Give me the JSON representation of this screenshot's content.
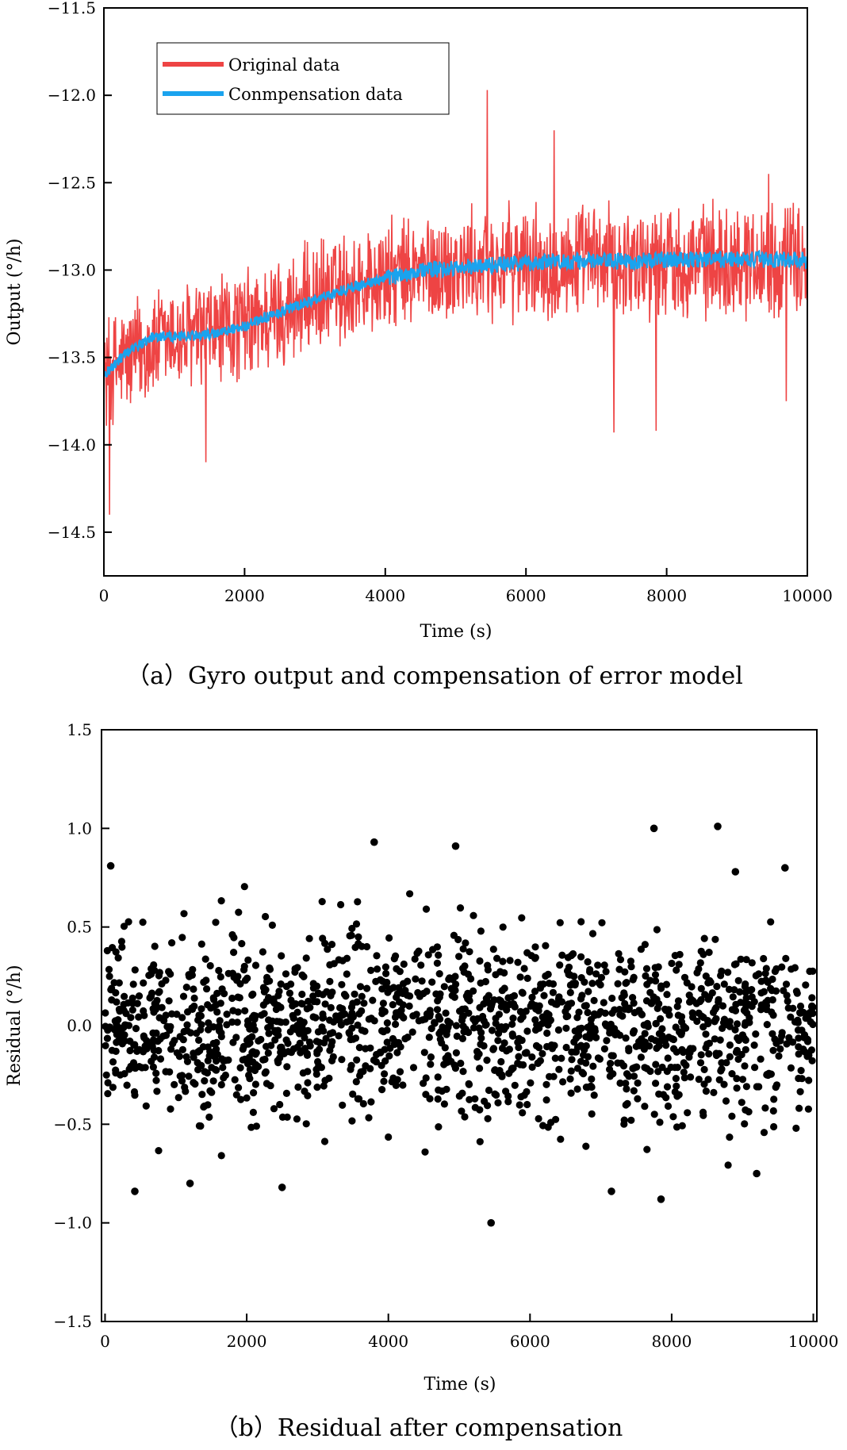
{
  "colors": {
    "original": "#ee4444",
    "compensation": "#1aa3ee",
    "residual": "#000000",
    "axis": "#000000"
  },
  "chart_data": [
    {
      "id": "a",
      "type": "line",
      "caption": "（a）Gyro output and compensation of error model",
      "xlabel": "Time (s)",
      "ylabel": "Output (°/h)",
      "xlim": [
        0,
        10000
      ],
      "ylim": [
        -14.75,
        -11.5
      ],
      "xticks": [
        0,
        2000,
        4000,
        6000,
        8000,
        10000
      ],
      "xtick_labels": [
        "0",
        "2000",
        "4000",
        "6000",
        "8000",
        "10000"
      ],
      "yticks": [
        -14.5,
        -14.0,
        -13.5,
        -13.0,
        -12.5,
        -12.0,
        -11.5
      ],
      "ytick_labels": [
        "−14.5",
        "−14.0",
        "−13.5",
        "−13.0",
        "−12.5",
        "−12.0",
        "−11.5"
      ],
      "legend_position": "top-left",
      "series": [
        {
          "name": "Original data",
          "trend_x": [
            0,
            500,
            1000,
            1500,
            2000,
            2500,
            3000,
            3500,
            4000,
            4500,
            5000,
            5500,
            6000,
            6500,
            7000,
            7500,
            8000,
            8500,
            9000,
            9500,
            10000
          ],
          "trend_y": [
            -13.6,
            -13.46,
            -13.4,
            -13.37,
            -13.32,
            -13.25,
            -13.16,
            -13.1,
            -13.05,
            -13.01,
            -12.99,
            -12.97,
            -12.96,
            -12.95,
            -12.95,
            -12.95,
            -12.94,
            -12.94,
            -12.94,
            -12.94,
            -12.94
          ],
          "noise_amplitude": 0.37,
          "spikes": [
            {
              "x": 80,
              "y": -14.4
            },
            {
              "x": 1450,
              "y": -14.1
            },
            {
              "x": 5450,
              "y": -11.97
            },
            {
              "x": 7250,
              "y": -13.93
            },
            {
              "x": 7850,
              "y": -13.92
            },
            {
              "x": 6400,
              "y": -12.2
            },
            {
              "x": 9450,
              "y": -12.45
            },
            {
              "x": 9700,
              "y": -13.75
            }
          ]
        },
        {
          "name": "Conmpensation data",
          "trend_x": [
            0,
            300,
            700,
            1000,
            1500,
            2000,
            2500,
            3000,
            3500,
            4000,
            4500,
            5000,
            5500,
            6000,
            6500,
            7000,
            7500,
            8000,
            8500,
            9000,
            9500,
            10000
          ],
          "trend_y": [
            -13.6,
            -13.48,
            -13.38,
            -13.38,
            -13.37,
            -13.32,
            -13.24,
            -13.17,
            -13.1,
            -13.05,
            -13.0,
            -12.99,
            -12.97,
            -12.96,
            -12.95,
            -12.95,
            -12.95,
            -12.94,
            -12.94,
            -12.94,
            -12.94,
            -12.94
          ],
          "noise_amplitude": 0.03
        }
      ]
    },
    {
      "id": "b",
      "type": "scatter",
      "caption": "（b）Residual after compensation",
      "xlabel": "Time (s)",
      "ylabel": "Residual (°/h)",
      "xlim": [
        -50,
        10050
      ],
      "ylim": [
        -1.5,
        1.5
      ],
      "xticks": [
        0,
        2000,
        4000,
        6000,
        8000,
        10000
      ],
      "xtick_labels": [
        "0",
        "2000",
        "4000",
        "6000",
        "8000",
        "10000"
      ],
      "yticks": [
        -1.5,
        -1.0,
        -0.5,
        0.0,
        0.5,
        1.0,
        1.5
      ],
      "ytick_labels": [
        "−1.5",
        "−1.0",
        "−0.5",
        "0.0",
        "0.5",
        "1.0",
        "1.5"
      ],
      "series": [
        {
          "name": "Residual",
          "sample_count": 1600,
          "std": 0.22,
          "outliers": [
            {
              "x": 80,
              "y": 0.81
            },
            {
              "x": 3800,
              "y": 0.93
            },
            {
              "x": 4950,
              "y": 0.91
            },
            {
              "x": 7750,
              "y": 1.0
            },
            {
              "x": 8650,
              "y": 1.01
            },
            {
              "x": 8900,
              "y": 0.78
            },
            {
              "x": 9600,
              "y": 0.8
            },
            {
              "x": 5450,
              "y": -1.0
            },
            {
              "x": 420,
              "y": -0.84
            },
            {
              "x": 1200,
              "y": -0.8
            },
            {
              "x": 2500,
              "y": -0.82
            },
            {
              "x": 7150,
              "y": -0.84
            },
            {
              "x": 7850,
              "y": -0.88
            },
            {
              "x": 9200,
              "y": -0.75
            }
          ]
        }
      ]
    }
  ]
}
